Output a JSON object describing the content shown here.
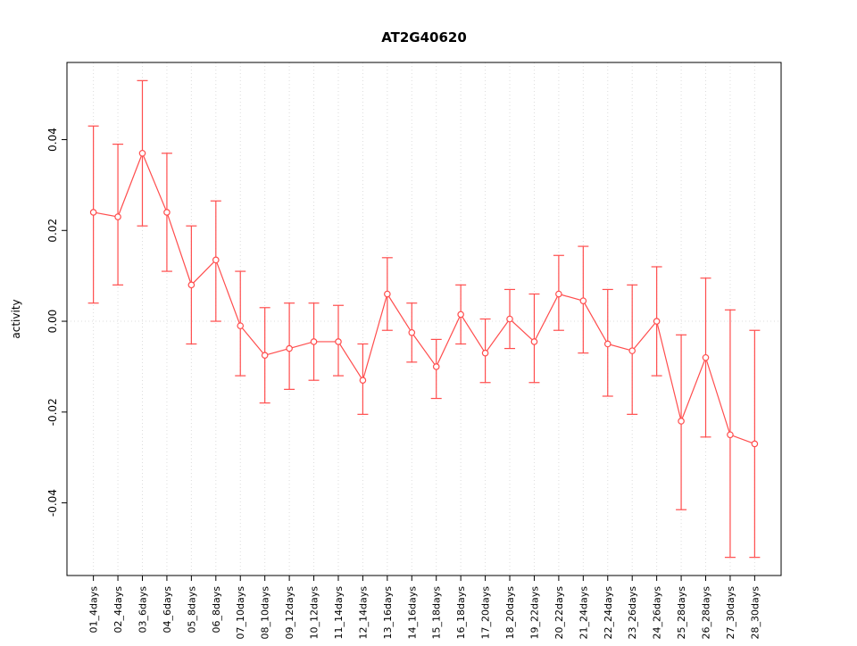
{
  "figure": {
    "title": "AT2G40620"
  },
  "chart_data": {
    "type": "line",
    "title": "AT2G40620",
    "xlabel": "",
    "ylabel": "activity",
    "ylim": [
      -0.056,
      0.057
    ],
    "yticks": [
      -0.04,
      -0.02,
      0.0,
      0.02,
      0.04
    ],
    "ytick_labels": [
      "-0.04",
      "-0.02",
      "0.00",
      "0.02",
      "0.04"
    ],
    "grid": "dotted-vertical-per-category-and-zero-line",
    "legend_position": "none",
    "marker": "open-circle",
    "error_bars": true,
    "colors": {
      "series": "#ff4d4d",
      "grid": "#dcdcdc",
      "axis": "#000000",
      "background": "#ffffff"
    },
    "categories": [
      "01_4days",
      "02_4days",
      "03_6days",
      "04_6days",
      "05_8days",
      "06_8days",
      "07_10days",
      "08_10days",
      "09_12days",
      "10_12days",
      "11_14days",
      "12_14days",
      "13_16days",
      "14_16days",
      "15_18days",
      "16_18days",
      "17_20days",
      "18_20days",
      "19_22days",
      "20_22days",
      "21_24days",
      "22_24days",
      "23_26days",
      "24_26days",
      "25_28days",
      "26_28days",
      "27_30days",
      "28_30days"
    ],
    "series": [
      {
        "name": "activity",
        "values": [
          0.024,
          0.023,
          0.037,
          0.024,
          0.008,
          0.0135,
          -0.001,
          -0.0075,
          -0.006,
          -0.0045,
          -0.0045,
          -0.013,
          0.006,
          -0.0025,
          -0.01,
          0.0015,
          -0.007,
          0.0005,
          -0.0045,
          0.006,
          0.0045,
          -0.005,
          -0.0065,
          0.0,
          -0.022,
          -0.008,
          -0.025,
          -0.027
        ],
        "err_low": [
          0.004,
          0.008,
          0.021,
          0.011,
          -0.005,
          0.0,
          -0.012,
          -0.018,
          -0.015,
          -0.013,
          -0.012,
          -0.0205,
          -0.002,
          -0.009,
          -0.017,
          -0.005,
          -0.0135,
          -0.006,
          -0.0135,
          -0.002,
          -0.007,
          -0.0165,
          -0.0205,
          -0.012,
          -0.0415,
          -0.0255,
          -0.052,
          -0.052
        ],
        "err_high": [
          0.043,
          0.039,
          0.053,
          0.037,
          0.021,
          0.0265,
          0.011,
          0.003,
          0.004,
          0.004,
          0.0035,
          -0.005,
          0.014,
          0.004,
          -0.004,
          0.008,
          0.0005,
          0.007,
          0.006,
          0.0145,
          0.0165,
          0.007,
          0.008,
          0.012,
          -0.003,
          0.0095,
          0.0025,
          -0.002
        ]
      }
    ]
  }
}
